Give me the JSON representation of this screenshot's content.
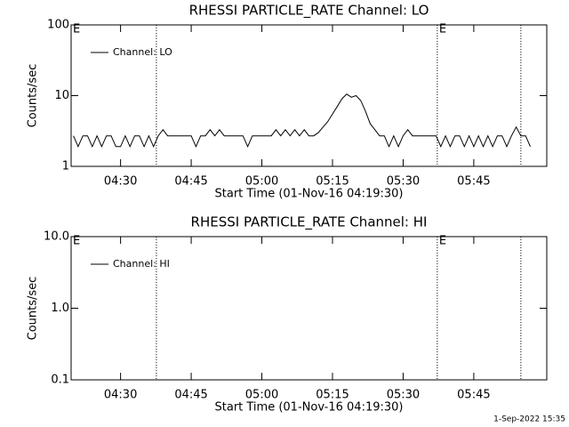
{
  "chart_data": [
    {
      "type": "line",
      "title": "RHESSI PARTICLE_RATE Channel: LO",
      "ylabel": "Counts/sec",
      "xlabel": "Start Time (01-Nov-16 04:19:30)",
      "log_y": true,
      "legend": "upper left",
      "color": "#000000",
      "xlim": [
        "04:19:30",
        "06:00:30"
      ],
      "xticks": [
        "04:30",
        "04:45",
        "05:00",
        "05:15",
        "05:30",
        "05:45"
      ],
      "ylim": [
        1,
        100
      ],
      "yticks": [
        1,
        10,
        100
      ],
      "vlines": [
        "04:37:36",
        "05:37:15",
        "05:55:00"
      ],
      "annotations": [
        {
          "text": "E",
          "x": "04:19:30"
        },
        {
          "text": "E",
          "x": "05:37:15"
        }
      ],
      "x": [
        "04:20",
        "04:21",
        "04:22",
        "04:23",
        "04:24",
        "04:25",
        "04:26",
        "04:27",
        "04:28",
        "04:29",
        "04:30",
        "04:31",
        "04:32",
        "04:33",
        "04:34",
        "04:35",
        "04:36",
        "04:37",
        "04:38",
        "04:39",
        "04:40",
        "04:41",
        "04:42",
        "04:43",
        "04:44",
        "04:45",
        "04:46",
        "04:47",
        "04:48",
        "04:49",
        "04:50",
        "04:51",
        "04:52",
        "04:53",
        "04:54",
        "04:55",
        "04:56",
        "04:57",
        "04:58",
        "04:59",
        "05:00",
        "05:01",
        "05:02",
        "05:03",
        "05:04",
        "05:05",
        "05:06",
        "05:07",
        "05:08",
        "05:09",
        "05:10",
        "05:11",
        "05:12",
        "05:13",
        "05:14",
        "05:15",
        "05:16",
        "05:17",
        "05:18",
        "05:19",
        "05:20",
        "05:21",
        "05:22",
        "05:23",
        "05:24",
        "05:25",
        "05:26",
        "05:27",
        "05:28",
        "05:29",
        "05:30",
        "05:31",
        "05:32",
        "05:33",
        "05:34",
        "05:35",
        "05:36",
        "05:37",
        "05:38",
        "05:39",
        "05:40",
        "05:41",
        "05:42",
        "05:43",
        "05:44",
        "05:45",
        "05:46",
        "05:47",
        "05:48",
        "05:49",
        "05:50",
        "05:51",
        "05:52",
        "05:53",
        "05:54",
        "05:55",
        "05:56",
        "05:57"
      ],
      "series": [
        {
          "name": "Channel: LO",
          "color": "#000000",
          "values": [
            2.7,
            1.9,
            2.7,
            2.7,
            1.9,
            2.7,
            1.9,
            2.7,
            2.7,
            1.9,
            1.9,
            2.7,
            1.9,
            2.7,
            2.7,
            1.9,
            2.7,
            1.9,
            2.7,
            3.3,
            2.7,
            2.7,
            2.7,
            2.7,
            2.7,
            2.7,
            1.9,
            2.7,
            2.7,
            3.3,
            2.7,
            3.3,
            2.7,
            2.7,
            2.7,
            2.7,
            2.7,
            1.9,
            2.7,
            2.7,
            2.7,
            2.7,
            2.7,
            3.3,
            2.7,
            3.3,
            2.7,
            3.3,
            2.7,
            3.3,
            2.7,
            2.7,
            3,
            3.6,
            4.3,
            5.5,
            7,
            9,
            10.5,
            9.5,
            10,
            8.5,
            6,
            4,
            3.3,
            2.7,
            2.7,
            1.9,
            2.7,
            1.9,
            2.7,
            3.3,
            2.7,
            2.7,
            2.7,
            2.7,
            2.7,
            2.7,
            1.9,
            2.7,
            1.9,
            2.7,
            2.7,
            1.9,
            2.7,
            1.9,
            2.7,
            1.9,
            2.7,
            1.9,
            2.7,
            2.7,
            1.9,
            2.7,
            3.6,
            2.7,
            2.7,
            1.9
          ]
        }
      ]
    },
    {
      "type": "line",
      "title": "RHESSI PARTICLE_RATE Channel: HI",
      "ylabel": "Counts/sec",
      "xlabel": "Start Time (01-Nov-16 04:19:30)",
      "log_y": true,
      "legend": "upper left",
      "color": "#000000",
      "xlim": [
        "04:19:30",
        "06:00:30"
      ],
      "xticks": [
        "04:30",
        "04:45",
        "05:00",
        "05:15",
        "05:30",
        "05:45"
      ],
      "ylim": [
        0.1,
        10
      ],
      "yticks": [
        0.1,
        {
          "value": 1,
          "label": "1.0"
        },
        {
          "value": 10,
          "label": "10.0"
        }
      ],
      "vlines": [
        "04:37:36",
        "05:37:15",
        "05:55:00"
      ],
      "annotations": [
        {
          "text": "E",
          "x": "04:19:30"
        },
        {
          "text": "E",
          "x": "05:37:15"
        }
      ],
      "x": [],
      "series": [
        {
          "name": "Channel: HI",
          "color": "#000000",
          "values": []
        }
      ]
    }
  ],
  "timestamp": "1-Sep-2022 15:35"
}
